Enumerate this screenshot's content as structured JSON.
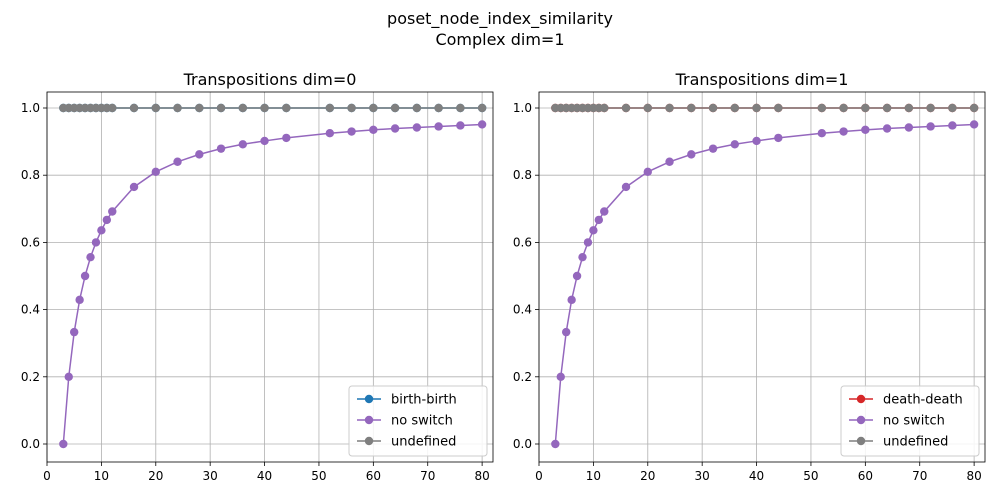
{
  "figure": {
    "suptitle_line1": "poset_node_index_similarity",
    "suptitle_line2": "Complex dim=1"
  },
  "chart_data": [
    {
      "type": "line",
      "title": "Transpositions dim=0",
      "xlabel": "",
      "ylabel": "",
      "xlim": [
        0,
        82
      ],
      "ylim": [
        0,
        1
      ],
      "xticks": [
        0,
        10,
        20,
        30,
        40,
        50,
        60,
        70,
        80
      ],
      "yticks": [
        0.0,
        0.2,
        0.4,
        0.6,
        0.8,
        1.0
      ],
      "xtick_labels": [
        "0",
        "10",
        "20",
        "30",
        "40",
        "50",
        "60",
        "70",
        "80"
      ],
      "ytick_labels": [
        "0.0",
        "0.2",
        "0.4",
        "0.6",
        "0.8",
        "1.0"
      ],
      "grid": true,
      "legend_position": "bottom-right",
      "x": [
        3,
        4,
        5,
        6,
        7,
        8,
        9,
        10,
        11,
        12,
        16,
        20,
        24,
        28,
        32,
        36,
        40,
        44,
        52,
        56,
        60,
        64,
        68,
        72,
        76,
        80
      ],
      "series": [
        {
          "name": "birth-birth",
          "color": "#1f77b4",
          "values": [
            1,
            1,
            1,
            1,
            1,
            1,
            1,
            1,
            1,
            1,
            1,
            1,
            1,
            1,
            1,
            1,
            1,
            1,
            1,
            1,
            1,
            1,
            1,
            1,
            1,
            1
          ]
        },
        {
          "name": "no switch",
          "color": "#9467bd",
          "values": [
            0.0,
            0.2,
            0.333,
            0.429,
            0.5,
            0.556,
            0.6,
            0.636,
            0.667,
            0.692,
            0.765,
            0.81,
            0.84,
            0.862,
            0.879,
            0.892,
            0.902,
            0.911,
            0.925,
            0.93,
            0.935,
            0.939,
            0.942,
            0.945,
            0.948,
            0.951
          ]
        },
        {
          "name": "undefined",
          "color": "#7f7f7f",
          "values": [
            1,
            1,
            1,
            1,
            1,
            1,
            1,
            1,
            1,
            1,
            1,
            1,
            1,
            1,
            1,
            1,
            1,
            1,
            1,
            1,
            1,
            1,
            1,
            1,
            1,
            1
          ]
        }
      ]
    },
    {
      "type": "line",
      "title": "Transpositions dim=1",
      "xlabel": "",
      "ylabel": "",
      "xlim": [
        0,
        82
      ],
      "ylim": [
        0,
        1
      ],
      "xticks": [
        0,
        10,
        20,
        30,
        40,
        50,
        60,
        70,
        80
      ],
      "yticks": [
        0.0,
        0.2,
        0.4,
        0.6,
        0.8,
        1.0
      ],
      "xtick_labels": [
        "0",
        "10",
        "20",
        "30",
        "40",
        "50",
        "60",
        "70",
        "80"
      ],
      "ytick_labels": [
        "0.0",
        "0.2",
        "0.4",
        "0.6",
        "0.8",
        "1.0"
      ],
      "grid": true,
      "legend_position": "bottom-right",
      "x": [
        3,
        4,
        5,
        6,
        7,
        8,
        9,
        10,
        11,
        12,
        16,
        20,
        24,
        28,
        32,
        36,
        40,
        44,
        52,
        56,
        60,
        64,
        68,
        72,
        76,
        80
      ],
      "series": [
        {
          "name": "death-death",
          "color": "#d62728",
          "values": [
            1,
            1,
            1,
            1,
            1,
            1,
            1,
            1,
            1,
            1,
            1,
            1,
            1,
            1,
            1,
            1,
            1,
            1,
            1,
            1,
            1,
            1,
            1,
            1,
            1,
            1
          ]
        },
        {
          "name": "no switch",
          "color": "#9467bd",
          "values": [
            0.0,
            0.2,
            0.333,
            0.429,
            0.5,
            0.556,
            0.6,
            0.636,
            0.667,
            0.692,
            0.765,
            0.81,
            0.84,
            0.862,
            0.879,
            0.892,
            0.902,
            0.911,
            0.925,
            0.93,
            0.935,
            0.939,
            0.942,
            0.945,
            0.948,
            0.951
          ]
        },
        {
          "name": "undefined",
          "color": "#7f7f7f",
          "values": [
            1,
            1,
            1,
            1,
            1,
            1,
            1,
            1,
            1,
            1,
            1,
            1,
            1,
            1,
            1,
            1,
            1,
            1,
            1,
            1,
            1,
            1,
            1,
            1,
            1,
            1
          ]
        }
      ]
    }
  ]
}
